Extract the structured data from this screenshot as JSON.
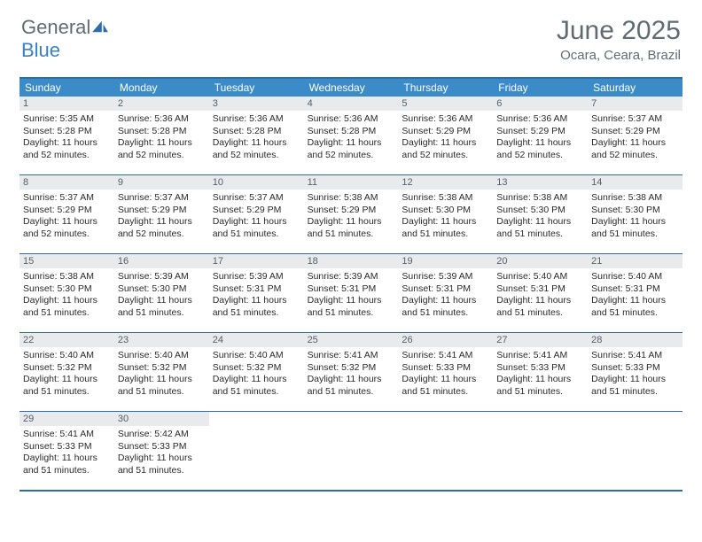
{
  "brand": {
    "word1": "General",
    "word2": "Blue"
  },
  "title": "June 2025",
  "subtitle": "Ocara, Ceara, Brazil",
  "colors": {
    "header_bar": "#3b8bc9",
    "accent_border": "#2f6da8",
    "daynum_bg": "#e8eaec",
    "text_muted": "#606b74",
    "brand_blue": "#3b82c4"
  },
  "day_names": [
    "Sunday",
    "Monday",
    "Tuesday",
    "Wednesday",
    "Thursday",
    "Friday",
    "Saturday"
  ],
  "weeks": [
    [
      {
        "n": "1",
        "sr": "5:35 AM",
        "ss": "5:28 PM",
        "dl": "11 hours and 52 minutes."
      },
      {
        "n": "2",
        "sr": "5:36 AM",
        "ss": "5:28 PM",
        "dl": "11 hours and 52 minutes."
      },
      {
        "n": "3",
        "sr": "5:36 AM",
        "ss": "5:28 PM",
        "dl": "11 hours and 52 minutes."
      },
      {
        "n": "4",
        "sr": "5:36 AM",
        "ss": "5:28 PM",
        "dl": "11 hours and 52 minutes."
      },
      {
        "n": "5",
        "sr": "5:36 AM",
        "ss": "5:29 PM",
        "dl": "11 hours and 52 minutes."
      },
      {
        "n": "6",
        "sr": "5:36 AM",
        "ss": "5:29 PM",
        "dl": "11 hours and 52 minutes."
      },
      {
        "n": "7",
        "sr": "5:37 AM",
        "ss": "5:29 PM",
        "dl": "11 hours and 52 minutes."
      }
    ],
    [
      {
        "n": "8",
        "sr": "5:37 AM",
        "ss": "5:29 PM",
        "dl": "11 hours and 52 minutes."
      },
      {
        "n": "9",
        "sr": "5:37 AM",
        "ss": "5:29 PM",
        "dl": "11 hours and 52 minutes."
      },
      {
        "n": "10",
        "sr": "5:37 AM",
        "ss": "5:29 PM",
        "dl": "11 hours and 51 minutes."
      },
      {
        "n": "11",
        "sr": "5:38 AM",
        "ss": "5:29 PM",
        "dl": "11 hours and 51 minutes."
      },
      {
        "n": "12",
        "sr": "5:38 AM",
        "ss": "5:30 PM",
        "dl": "11 hours and 51 minutes."
      },
      {
        "n": "13",
        "sr": "5:38 AM",
        "ss": "5:30 PM",
        "dl": "11 hours and 51 minutes."
      },
      {
        "n": "14",
        "sr": "5:38 AM",
        "ss": "5:30 PM",
        "dl": "11 hours and 51 minutes."
      }
    ],
    [
      {
        "n": "15",
        "sr": "5:38 AM",
        "ss": "5:30 PM",
        "dl": "11 hours and 51 minutes."
      },
      {
        "n": "16",
        "sr": "5:39 AM",
        "ss": "5:30 PM",
        "dl": "11 hours and 51 minutes."
      },
      {
        "n": "17",
        "sr": "5:39 AM",
        "ss": "5:31 PM",
        "dl": "11 hours and 51 minutes."
      },
      {
        "n": "18",
        "sr": "5:39 AM",
        "ss": "5:31 PM",
        "dl": "11 hours and 51 minutes."
      },
      {
        "n": "19",
        "sr": "5:39 AM",
        "ss": "5:31 PM",
        "dl": "11 hours and 51 minutes."
      },
      {
        "n": "20",
        "sr": "5:40 AM",
        "ss": "5:31 PM",
        "dl": "11 hours and 51 minutes."
      },
      {
        "n": "21",
        "sr": "5:40 AM",
        "ss": "5:31 PM",
        "dl": "11 hours and 51 minutes."
      }
    ],
    [
      {
        "n": "22",
        "sr": "5:40 AM",
        "ss": "5:32 PM",
        "dl": "11 hours and 51 minutes."
      },
      {
        "n": "23",
        "sr": "5:40 AM",
        "ss": "5:32 PM",
        "dl": "11 hours and 51 minutes."
      },
      {
        "n": "24",
        "sr": "5:40 AM",
        "ss": "5:32 PM",
        "dl": "11 hours and 51 minutes."
      },
      {
        "n": "25",
        "sr": "5:41 AM",
        "ss": "5:32 PM",
        "dl": "11 hours and 51 minutes."
      },
      {
        "n": "26",
        "sr": "5:41 AM",
        "ss": "5:33 PM",
        "dl": "11 hours and 51 minutes."
      },
      {
        "n": "27",
        "sr": "5:41 AM",
        "ss": "5:33 PM",
        "dl": "11 hours and 51 minutes."
      },
      {
        "n": "28",
        "sr": "5:41 AM",
        "ss": "5:33 PM",
        "dl": "11 hours and 51 minutes."
      }
    ],
    [
      {
        "n": "29",
        "sr": "5:41 AM",
        "ss": "5:33 PM",
        "dl": "11 hours and 51 minutes."
      },
      {
        "n": "30",
        "sr": "5:42 AM",
        "ss": "5:33 PM",
        "dl": "11 hours and 51 minutes."
      },
      null,
      null,
      null,
      null,
      null
    ]
  ],
  "labels": {
    "sunrise": "Sunrise:",
    "sunset": "Sunset:",
    "daylight": "Daylight:"
  }
}
